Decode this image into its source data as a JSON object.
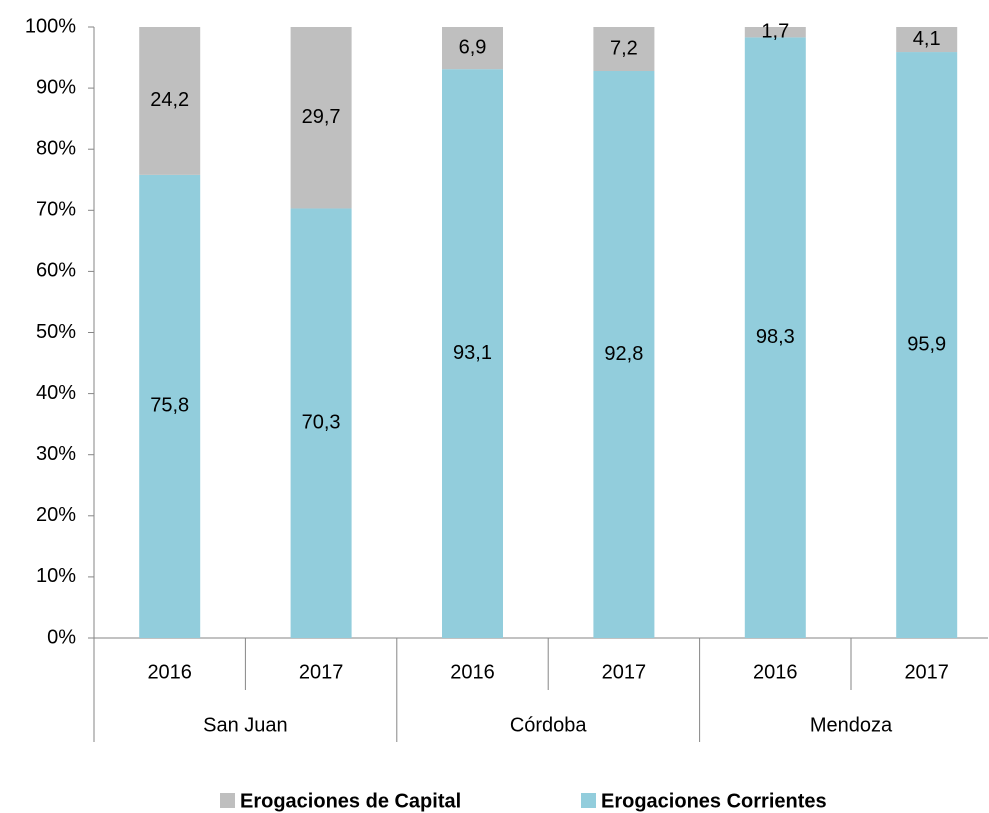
{
  "chart_data": {
    "type": "stacked_bar",
    "categories": [
      "2016",
      "2017",
      "2016",
      "2017",
      "2016",
      "2017"
    ],
    "groups": [
      "San Juan",
      "Córdoba",
      "Mendoza"
    ],
    "series": [
      {
        "name": "Erogaciones de Capital",
        "color": "#bfbfbf",
        "values": [
          24.2,
          29.7,
          6.9,
          7.2,
          1.7,
          4.1
        ],
        "value_labels": [
          "24,2",
          "29,7",
          "6,9",
          "7,2",
          "1,7",
          "4,1"
        ]
      },
      {
        "name": "Erogaciones Corrientes",
        "color": "#92cddc",
        "values": [
          75.8,
          70.3,
          93.1,
          92.8,
          98.3,
          95.9
        ],
        "value_labels": [
          "75,8",
          "70,3",
          "93,1",
          "92,8",
          "98,3",
          "95,9"
        ]
      }
    ],
    "ylim": [
      0,
      100
    ],
    "yticks": [
      {
        "value": 0,
        "label": "0%"
      },
      {
        "value": 10,
        "label": "10%"
      },
      {
        "value": 20,
        "label": "20%"
      },
      {
        "value": 30,
        "label": "30%"
      },
      {
        "value": 40,
        "label": "40%"
      },
      {
        "value": 50,
        "label": "50%"
      },
      {
        "value": 60,
        "label": "60%"
      },
      {
        "value": 70,
        "label": "70%"
      },
      {
        "value": 80,
        "label": "80%"
      },
      {
        "value": 90,
        "label": "90%"
      },
      {
        "value": 100,
        "label": "100%"
      }
    ],
    "legend": "bottom"
  }
}
